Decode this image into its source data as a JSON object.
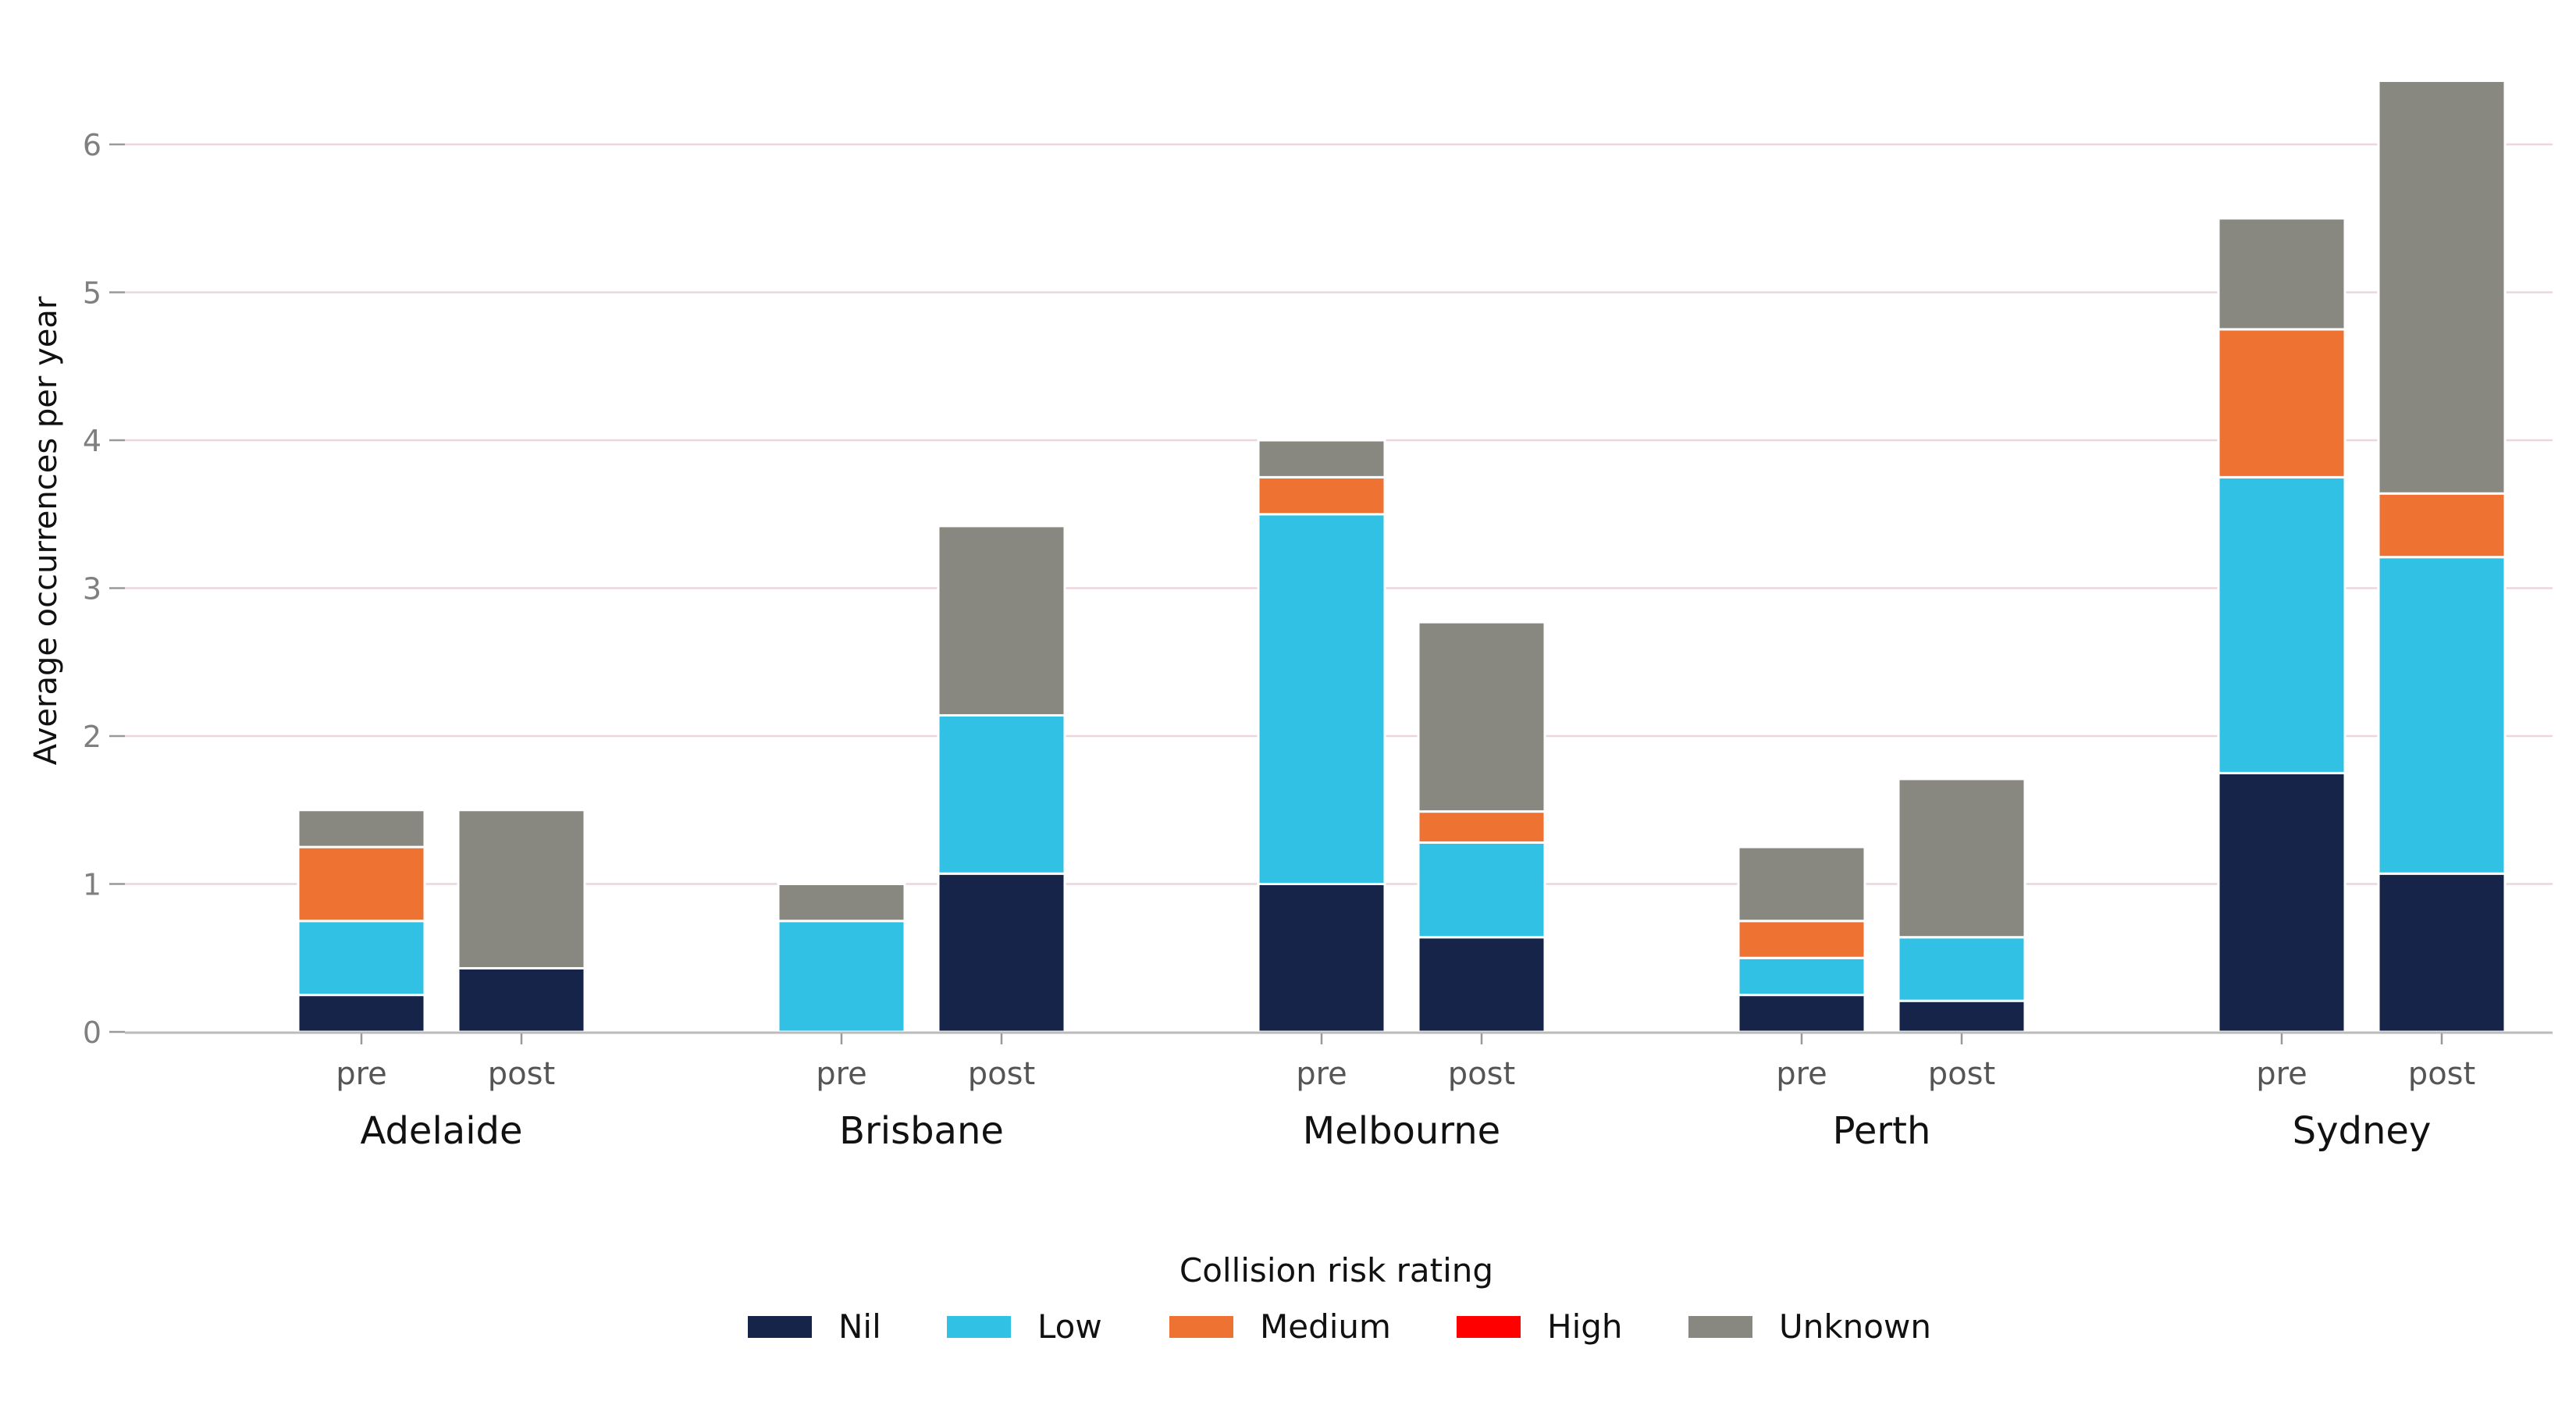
{
  "chart_data": {
    "type": "bar",
    "stacked": true,
    "ylabel": "Average occurrences per year",
    "ylim": [
      0,
      6.5
    ],
    "yticks": [
      "0",
      "1",
      "2",
      "3",
      "4",
      "5",
      "6"
    ],
    "grid": "horizontal",
    "groups": [
      "Adelaide",
      "Brisbane",
      "Melbourne",
      "Perth",
      "Sydney"
    ],
    "subcategories": [
      "pre",
      "post"
    ],
    "legend": {
      "title": "Collision risk rating",
      "placement": "bottom-center"
    },
    "series": [
      {
        "name": "Nil",
        "color": "#16244a",
        "values": [
          [
            0.25,
            0.43
          ],
          [
            0,
            1.07
          ],
          [
            1.0,
            0.64
          ],
          [
            0.25,
            0.21
          ],
          [
            1.75,
            1.07
          ]
        ]
      },
      {
        "name": "Low",
        "color": "#31c1e4",
        "values": [
          [
            0.5,
            0
          ],
          [
            0.75,
            1.07
          ],
          [
            2.5,
            0.64
          ],
          [
            0.25,
            0.43
          ],
          [
            2.0,
            2.14
          ]
        ]
      },
      {
        "name": "Medium",
        "color": "#ee7232",
        "values": [
          [
            0.5,
            0
          ],
          [
            0,
            0
          ],
          [
            0.25,
            0.21
          ],
          [
            0.25,
            0
          ],
          [
            1.0,
            0.43
          ]
        ]
      },
      {
        "name": "High",
        "color": "#ff0000",
        "values": [
          [
            0,
            0
          ],
          [
            0,
            0
          ],
          [
            0,
            0
          ],
          [
            0,
            0
          ],
          [
            0,
            0
          ]
        ]
      },
      {
        "name": "Unknown",
        "color": "#888880",
        "values": [
          [
            0.25,
            1.07
          ],
          [
            0.25,
            1.28
          ],
          [
            0.25,
            1.28
          ],
          [
            0.5,
            1.07
          ],
          [
            0.75,
            2.79
          ]
        ]
      }
    ]
  }
}
